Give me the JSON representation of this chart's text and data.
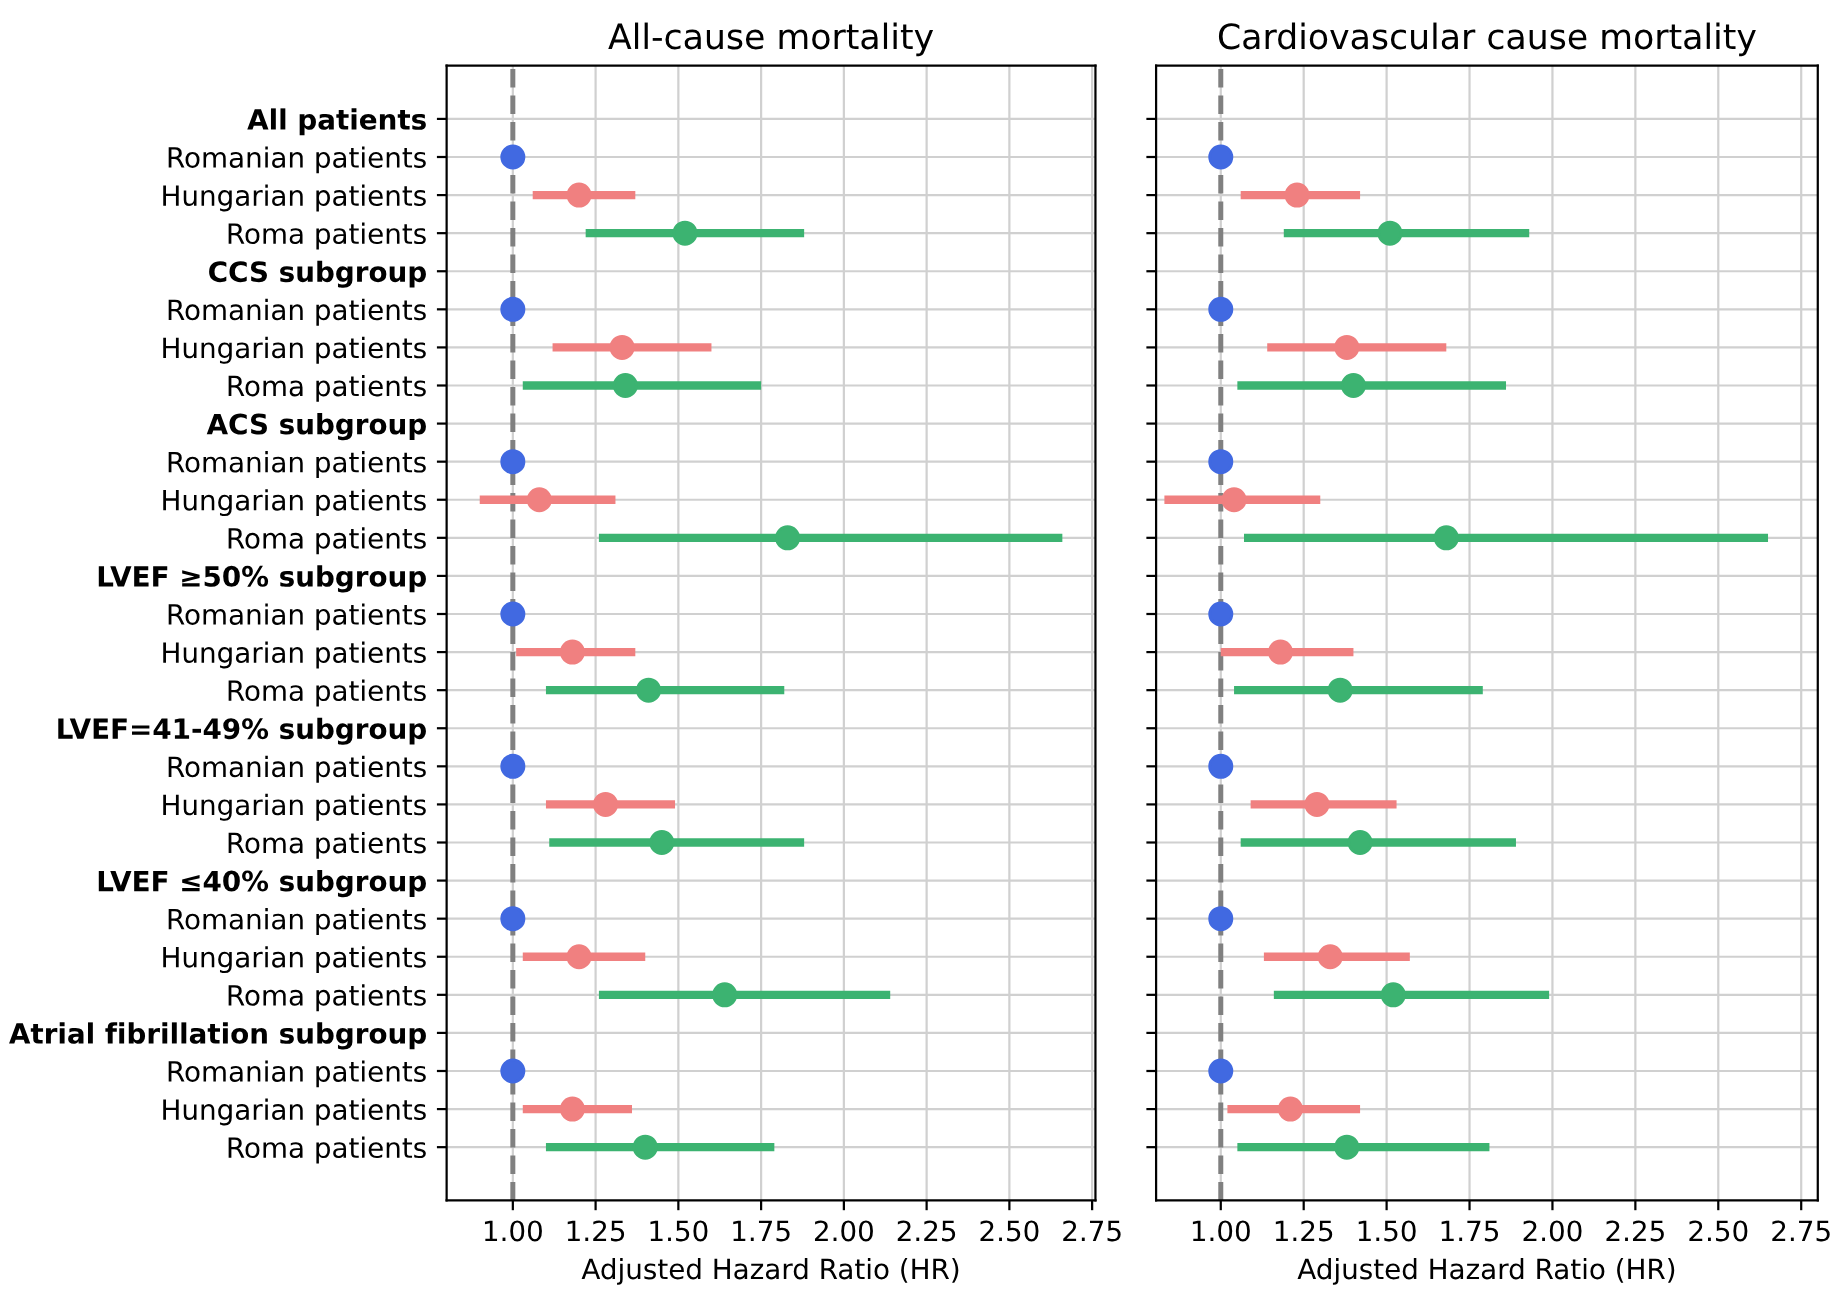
{
  "chart_data": [
    {
      "type": "scatter",
      "orientation": "horizontal",
      "title": "All-cause mortality",
      "xlabel": "Adjusted Hazard Ratio (HR)",
      "categories": [
        "All patients",
        "Romanian patients",
        "Hungarian patients",
        "Roma patients",
        "CCS subgroup",
        "Romanian patients",
        "Hungarian patients",
        "Roma patients",
        "ACS subgroup",
        "Romanian patients",
        "Hungarian patients",
        "Roma patients",
        "LVEF ≥50% subgroup",
        "Romanian patients",
        "Hungarian patients",
        "Roma patients",
        "LVEF=41-49% subgroup",
        "Romanian patients",
        "Hungarian patients",
        "Roma patients",
        "LVEF ≤40% subgroup",
        "Romanian patients",
        "Hungarian patients",
        "Roma patients",
        "Atrial fibrillation subgroup",
        "Romanian patients",
        "Hungarian patients",
        "Roma patients"
      ],
      "series": [
        {
          "color": "#4169e1",
          "values": [
            null,
            1.0,
            null,
            null,
            null,
            1.0,
            null,
            null,
            null,
            1.0,
            null,
            null,
            null,
            1.0,
            null,
            null,
            null,
            1.0,
            null,
            null,
            null,
            1.0,
            null,
            null,
            null,
            1.0,
            null,
            null
          ]
        },
        {
          "color": "#f08080",
          "values": [
            null,
            null,
            1.2,
            null,
            null,
            null,
            1.33,
            null,
            null,
            null,
            1.08,
            null,
            null,
            null,
            1.18,
            null,
            null,
            null,
            1.28,
            null,
            null,
            null,
            1.2,
            null,
            null,
            null,
            1.18,
            null
          ],
          "errors": [
            null,
            null,
            [
              1.06,
              1.37
            ],
            null,
            null,
            null,
            [
              1.12,
              1.6
            ],
            null,
            null,
            null,
            [
              0.9,
              1.31
            ],
            null,
            null,
            null,
            [
              1.01,
              1.37
            ],
            null,
            null,
            null,
            [
              1.1,
              1.49
            ],
            null,
            null,
            null,
            [
              1.03,
              1.4
            ],
            null,
            null,
            null,
            [
              1.03,
              1.36
            ],
            null
          ]
        },
        {
          "color": "#3cb371",
          "values": [
            null,
            null,
            null,
            1.52,
            null,
            null,
            null,
            1.34,
            null,
            null,
            null,
            1.83,
            null,
            null,
            null,
            1.41,
            null,
            null,
            null,
            1.45,
            null,
            null,
            null,
            1.64,
            null,
            null,
            null,
            1.4
          ],
          "errors": [
            null,
            null,
            null,
            [
              1.22,
              1.88
            ],
            null,
            null,
            null,
            [
              1.03,
              1.75
            ],
            null,
            null,
            null,
            [
              1.26,
              2.66
            ],
            null,
            null,
            null,
            [
              1.1,
              1.82
            ],
            null,
            null,
            null,
            [
              1.11,
              1.88
            ],
            null,
            null,
            null,
            [
              1.26,
              2.14
            ],
            null,
            null,
            null,
            [
              1.1,
              1.79
            ]
          ]
        }
      ],
      "xlim": [
        0.8,
        2.76
      ],
      "xticks": [
        {
          "value": 1.0,
          "label": "1.00"
        },
        {
          "value": 1.25,
          "label": "1.25"
        },
        {
          "value": 1.5,
          "label": "1.50"
        },
        {
          "value": 1.75,
          "label": "1.75"
        },
        {
          "value": 2.0,
          "label": "2.00"
        },
        {
          "value": 2.25,
          "label": "2.25"
        },
        {
          "value": 2.5,
          "label": "2.50"
        },
        {
          "value": 2.75,
          "label": "2.75"
        }
      ],
      "ref_lines": [
        {
          "axis": "x",
          "value": 1.0,
          "color": "#808080",
          "line_style": "dashed"
        }
      ],
      "grid": true,
      "marker": "circle"
    },
    {
      "type": "scatter",
      "orientation": "horizontal",
      "title": "Cardiovascular cause mortality",
      "xlabel": "Adjusted Hazard Ratio (HR)",
      "categories": [
        null,
        null,
        null,
        null,
        null,
        null,
        null,
        null,
        null,
        null,
        null,
        null,
        null,
        null,
        null,
        null,
        null,
        null,
        null,
        null,
        null,
        null,
        null,
        null,
        null,
        null,
        null,
        null
      ],
      "series": [
        {
          "color": "#4169e1",
          "values": [
            null,
            1.0,
            null,
            null,
            null,
            1.0,
            null,
            null,
            null,
            1.0,
            null,
            null,
            null,
            1.0,
            null,
            null,
            null,
            1.0,
            null,
            null,
            null,
            1.0,
            null,
            null,
            null,
            1.0,
            null,
            null
          ]
        },
        {
          "color": "#f08080",
          "values": [
            null,
            null,
            1.23,
            null,
            null,
            null,
            1.38,
            null,
            null,
            null,
            1.04,
            null,
            null,
            null,
            1.18,
            null,
            null,
            null,
            1.29,
            null,
            null,
            null,
            1.33,
            null,
            null,
            null,
            1.21,
            null
          ],
          "errors": [
            null,
            null,
            [
              1.06,
              1.42
            ],
            null,
            null,
            null,
            [
              1.14,
              1.68
            ],
            null,
            null,
            null,
            [
              0.83,
              1.3
            ],
            null,
            null,
            null,
            [
              1.0,
              1.4
            ],
            null,
            null,
            null,
            [
              1.09,
              1.53
            ],
            null,
            null,
            null,
            [
              1.13,
              1.57
            ],
            null,
            null,
            null,
            [
              1.02,
              1.42
            ],
            null
          ]
        },
        {
          "color": "#3cb371",
          "values": [
            null,
            null,
            null,
            1.51,
            null,
            null,
            null,
            1.4,
            null,
            null,
            null,
            1.68,
            null,
            null,
            null,
            1.36,
            null,
            null,
            null,
            1.42,
            null,
            null,
            null,
            1.52,
            null,
            null,
            null,
            1.38
          ],
          "errors": [
            null,
            null,
            null,
            [
              1.19,
              1.93
            ],
            null,
            null,
            null,
            [
              1.05,
              1.86
            ],
            null,
            null,
            null,
            [
              1.07,
              2.65
            ],
            null,
            null,
            null,
            [
              1.04,
              1.79
            ],
            null,
            null,
            null,
            [
              1.06,
              1.89
            ],
            null,
            null,
            null,
            [
              1.16,
              1.99
            ],
            null,
            null,
            null,
            [
              1.05,
              1.81
            ]
          ]
        }
      ],
      "xlim": [
        0.805,
        2.8
      ],
      "xticks": [
        {
          "value": 1.0,
          "label": "1.00"
        },
        {
          "value": 1.25,
          "label": "1.25"
        },
        {
          "value": 1.5,
          "label": "1.50"
        },
        {
          "value": 1.75,
          "label": "1.75"
        },
        {
          "value": 2.0,
          "label": "2.00"
        },
        {
          "value": 2.25,
          "label": "2.25"
        },
        {
          "value": 2.5,
          "label": "2.50"
        },
        {
          "value": 2.75,
          "label": "2.75"
        }
      ],
      "ref_lines": [
        {
          "axis": "x",
          "value": 1.0,
          "color": "#808080",
          "line_style": "dashed"
        }
      ],
      "grid": true,
      "marker": "circle",
      "tick_labels": "x"
    }
  ]
}
